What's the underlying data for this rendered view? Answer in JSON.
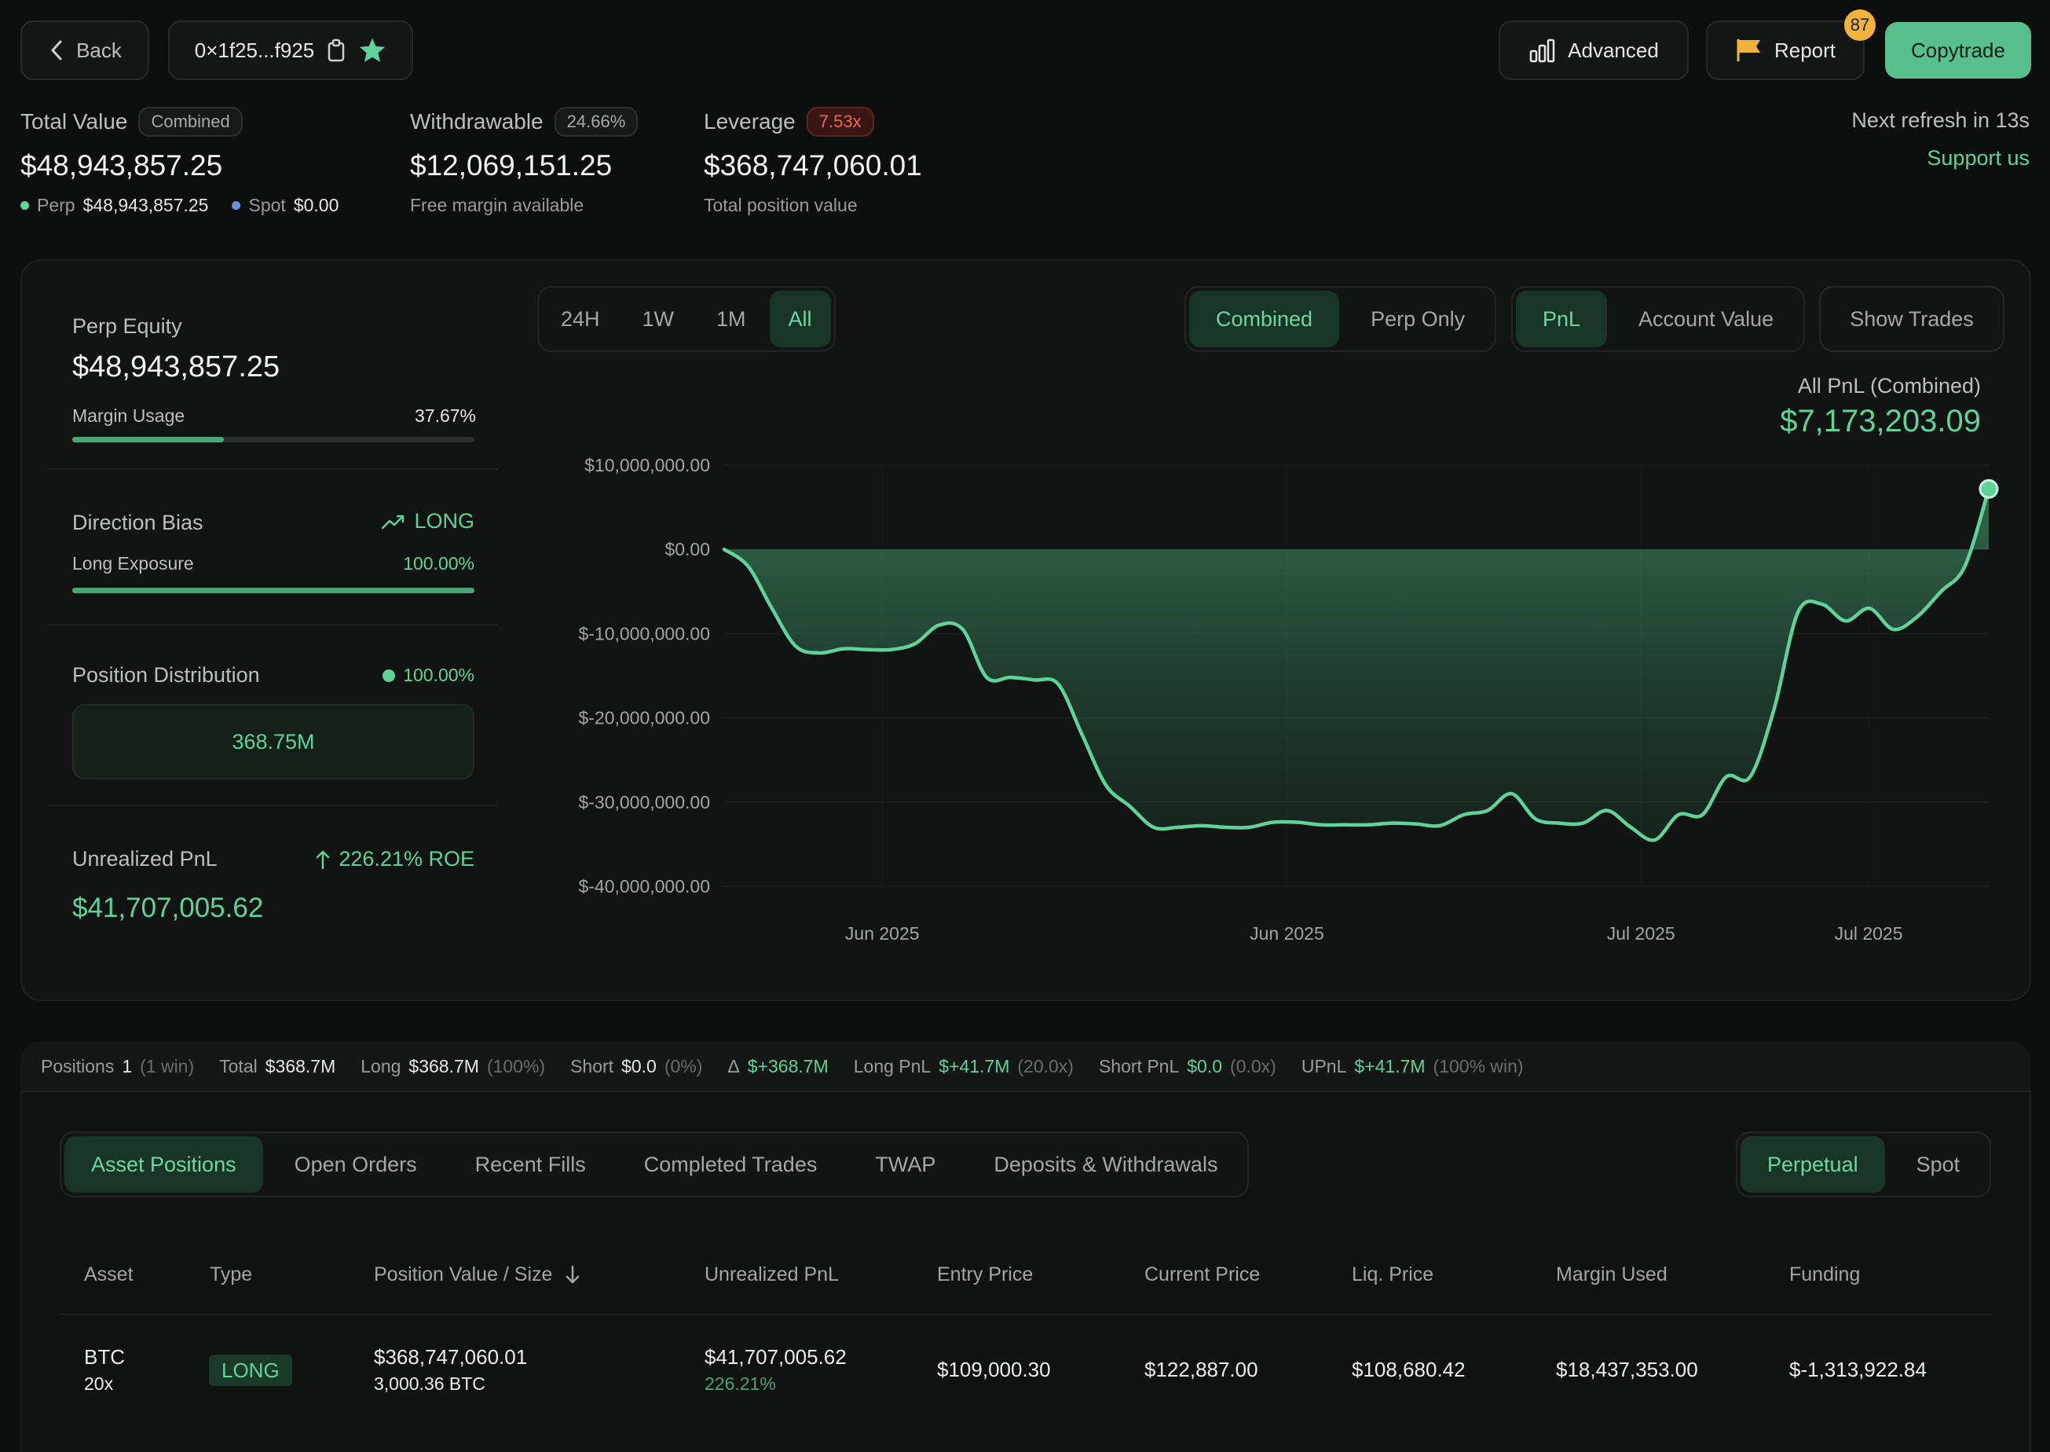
{
  "header": {
    "back_label": "Back",
    "address": "0×1f25...f925",
    "advanced_label": "Advanced",
    "report_label": "Report",
    "report_badge": "87",
    "copytrade_label": "Copytrade",
    "next_refresh": "Next refresh in 13s",
    "support": "Support us"
  },
  "summary": {
    "total_value_label": "Total Value",
    "total_value_badge": "Combined",
    "total_value": "$48,943,857.25",
    "perp_label": "Perp",
    "perp_value": "$48,943,857.25",
    "spot_label": "Spot",
    "spot_value": "$0.00",
    "withdrawable_label": "Withdrawable",
    "withdrawable_badge": "24.66%",
    "withdrawable_value": "$12,069,151.25",
    "withdrawable_sub": "Free margin available",
    "leverage_label": "Leverage",
    "leverage_badge": "7.53x",
    "leverage_value": "$368,747,060.01",
    "leverage_sub": "Total position value"
  },
  "left_panel": {
    "perp_equity_label": "Perp Equity",
    "perp_equity_value": "$48,943,857.25",
    "margin_usage_label": "Margin Usage",
    "margin_usage_value": "37.67%",
    "margin_usage_fraction": 0.3767,
    "direction_bias_label": "Direction Bias",
    "direction_bias_value": "LONG",
    "long_exposure_label": "Long Exposure",
    "long_exposure_value": "100.00%",
    "long_exposure_fraction": 1.0,
    "position_distribution_label": "Position Distribution",
    "position_distribution_value": "100.00%",
    "position_distribution_total": "368.75M",
    "unrealized_pnl_label": "Unrealized PnL",
    "unrealized_pnl_roe": "226.21% ROE",
    "unrealized_pnl_value": "$41,707,005.62"
  },
  "chart_controls": {
    "ranges": [
      "24H",
      "1W",
      "1M",
      "All"
    ],
    "active_range": "All",
    "scope": [
      "Combined",
      "Perp Only"
    ],
    "metric": [
      "PnL",
      "Account Value"
    ],
    "show_trades": "Show Trades",
    "pnl_title": "All PnL (Combined)",
    "pnl_value": "$7,173,203.09"
  },
  "chart_data": {
    "type": "area",
    "title": "",
    "xlabel": "",
    "ylabel": "",
    "y_tick_labels": [
      "$10,000,000.00",
      "$0.00",
      "$-10,000,000.00",
      "$-20,000,000.00",
      "$-30,000,000.00",
      "$-40,000,000.00"
    ],
    "x_tick_labels": [
      "Jun 2025",
      "Jun 2025",
      "Jul 2025",
      "Jul 2025"
    ],
    "ylim": [
      -40000000,
      10000000
    ],
    "grid": true,
    "series": [
      {
        "values": [
          0,
          -2000000,
          -7000000,
          -11500000,
          -12300000,
          -11800000,
          -11900000,
          -11900000,
          -11200000,
          -9000000,
          -9500000,
          -15200000,
          -15200000,
          -15500000,
          -16000000,
          -22000000,
          -28000000,
          -30500000,
          -33000000,
          -33000000,
          -32800000,
          -33000000,
          -33000000,
          -32400000,
          -32400000,
          -32700000,
          -32700000,
          -32700000,
          -32500000,
          -32600000,
          -32800000,
          -31500000,
          -31000000,
          -29000000,
          -32000000,
          -32500000,
          -32500000,
          -31000000,
          -33000000,
          -34500000,
          -31500000,
          -31500000,
          -27000000,
          -27000000,
          -19000000,
          -7500000,
          -6500000,
          -8500000,
          -7000000,
          -9500000,
          -8000000,
          -5000000,
          -2000000,
          7173203.09
        ]
      }
    ]
  },
  "positions_summary": {
    "positions_label": "Positions",
    "positions_count": "1",
    "positions_win": "(1 win)",
    "total_label": "Total",
    "total_value": "$368.7M",
    "long_label": "Long",
    "long_value": "$368.7M",
    "long_pct": "(100%)",
    "short_label": "Short",
    "short_value": "$0.0",
    "short_pct": "(0%)",
    "delta_label": "Δ",
    "delta_value": "$+368.7M",
    "long_pnl_label": "Long PnL",
    "long_pnl_value": "$+41.7M",
    "long_pnl_mult": "(20.0x)",
    "short_pnl_label": "Short PnL",
    "short_pnl_value": "$0.0",
    "short_pnl_mult": "(0.0x)",
    "upnl_label": "UPnL",
    "upnl_value": "$+41.7M",
    "upnl_win": "(100% win)"
  },
  "tabs": {
    "items": [
      "Asset Positions",
      "Open Orders",
      "Recent Fills",
      "Completed Trades",
      "TWAP",
      "Deposits & Withdrawals"
    ],
    "active": "Asset Positions",
    "market": [
      "Perpetual",
      "Spot"
    ]
  },
  "table": {
    "headers": [
      "Asset",
      "Type",
      "Position Value / Size",
      "Unrealized PnL",
      "Entry Price",
      "Current Price",
      "Liq. Price",
      "Margin Used",
      "Funding"
    ],
    "row": {
      "asset": "BTC",
      "leverage": "20x",
      "type": "LONG",
      "position_value": "$368,747,060.01",
      "size": "3,000.36 BTC",
      "upnl": "$41,707,005.62",
      "upnl_pct": "226.21%",
      "entry": "$109,000.30",
      "current": "$122,887.00",
      "liq": "$108,680.42",
      "margin": "$18,437,353.00",
      "funding": "$-1,313,922.84"
    }
  },
  "colors": {
    "accent": "#5fd39a",
    "negative": "#e8685a",
    "background": "#0d0e0e",
    "card": "#121414"
  }
}
